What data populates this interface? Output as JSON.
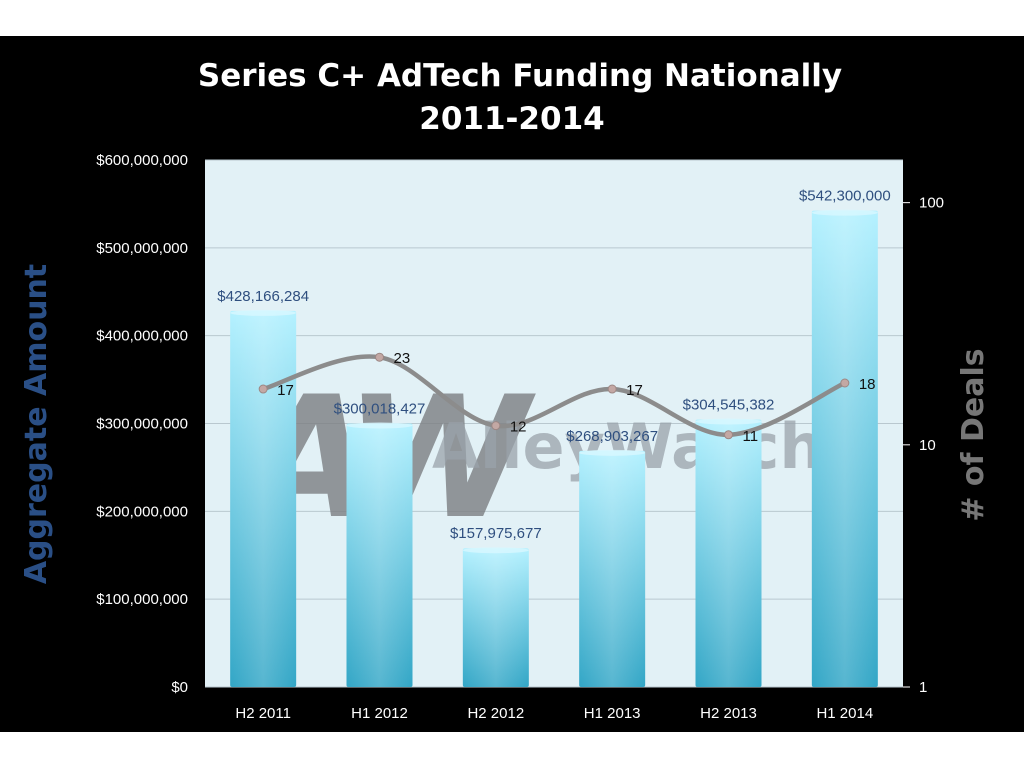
{
  "chart_data": {
    "type": "bar",
    "title": [
      "Series C+ AdTech Funding Nationally",
      "2011-2014"
    ],
    "categories": [
      "H2 2011",
      "H1 2012",
      "H2 2012",
      "H1 2013",
      "H2 2013",
      "H1 2014"
    ],
    "ylabel": "Aggregate  Amount",
    "y2label": "# of Deals",
    "ylim": [
      0,
      600000000
    ],
    "y2lim": [
      1,
      150
    ],
    "y2scale": "log",
    "yticks": [
      "$0",
      "$100,000,000",
      "$200,000,000",
      "$300,000,000",
      "$400,000,000",
      "$500,000,000",
      "$600,000,000"
    ],
    "y2ticks": [
      "1",
      "10",
      "100"
    ],
    "grid": true,
    "series": [
      {
        "kind": "bar",
        "axis": "left",
        "values": [
          428166284,
          300018427,
          157975677,
          268903267,
          304545382,
          542300000
        ],
        "labels": [
          "$428,166,284",
          "$300,018,427",
          "$157,975,677",
          "$268,903,267",
          "$304,545,382",
          "$542,300,000"
        ],
        "color": "#5fd0ef"
      },
      {
        "kind": "line",
        "axis": "right",
        "values": [
          17,
          23,
          12,
          17,
          11,
          18
        ],
        "labels": [
          "17",
          "23",
          "12",
          "17",
          "11",
          "18"
        ],
        "color": "#8c8c8c"
      }
    ]
  },
  "watermark": {
    "logo": "AW",
    "text": "AlleyWatch"
  },
  "colors": {
    "background": "#000000",
    "plot": "#e2f1f6",
    "bar_top": "#aef0ff",
    "bar_bottom": "#33aac9",
    "line": "#8c8c8c",
    "point": "#c3a8a4"
  }
}
